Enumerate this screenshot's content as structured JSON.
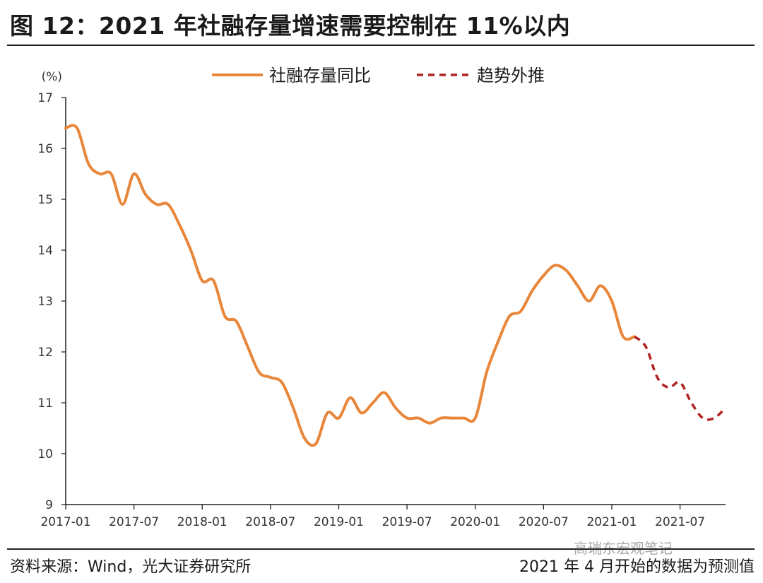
{
  "figure": {
    "title": "图 12：2021 年社融存量增速需要控制在 11%以内",
    "source": "资料来源：Wind，光大证券研究所",
    "note": "2021 年 4 月开始的数据为预测值",
    "watermark": "高瑞东宏观笔记"
  },
  "colors": {
    "actual": "#E8863A",
    "forecast": "#B22222",
    "axis": "#222222"
  },
  "chart_data": {
    "type": "line",
    "title": "",
    "xlabel": "",
    "ylabel": "(%)",
    "ylim": [
      9,
      17
    ],
    "yticks": [
      9,
      10,
      11,
      12,
      13,
      14,
      15,
      16,
      17
    ],
    "xticks": [
      "2017-01",
      "2017-07",
      "2018-01",
      "2018-07",
      "2019-01",
      "2019-07",
      "2020-01",
      "2020-07",
      "2021-01",
      "2021-07"
    ],
    "x_range": [
      "2017-01",
      "2021-11"
    ],
    "grid": false,
    "legend": "top-center",
    "series": [
      {
        "name": "社融存量同比",
        "style": "solid",
        "x": [
          "2017-01",
          "2017-02",
          "2017-03",
          "2017-04",
          "2017-05",
          "2017-06",
          "2017-07",
          "2017-08",
          "2017-09",
          "2017-10",
          "2017-11",
          "2017-12",
          "2018-01",
          "2018-02",
          "2018-03",
          "2018-04",
          "2018-05",
          "2018-06",
          "2018-07",
          "2018-08",
          "2018-09",
          "2018-10",
          "2018-11",
          "2018-12",
          "2019-01",
          "2019-02",
          "2019-03",
          "2019-04",
          "2019-05",
          "2019-06",
          "2019-07",
          "2019-08",
          "2019-09",
          "2019-10",
          "2019-11",
          "2019-12",
          "2020-01",
          "2020-02",
          "2020-03",
          "2020-04",
          "2020-05",
          "2020-06",
          "2020-07",
          "2020-08",
          "2020-09",
          "2020-10",
          "2020-11",
          "2020-12",
          "2021-01",
          "2021-02",
          "2021-03"
        ],
        "y": [
          16.4,
          16.4,
          15.7,
          15.5,
          15.5,
          14.9,
          15.5,
          15.1,
          14.9,
          14.9,
          14.5,
          14.0,
          13.4,
          13.4,
          12.7,
          12.6,
          12.1,
          11.6,
          11.5,
          11.4,
          10.9,
          10.3,
          10.2,
          10.8,
          10.7,
          11.1,
          10.8,
          11.0,
          11.2,
          10.9,
          10.7,
          10.7,
          10.6,
          10.7,
          10.7,
          10.7,
          10.7,
          11.6,
          12.2,
          12.7,
          12.8,
          13.2,
          13.5,
          13.7,
          13.6,
          13.3,
          13.0,
          13.3,
          13.0,
          12.3,
          12.3
        ]
      },
      {
        "name": "趋势外推",
        "style": "dashed",
        "x": [
          "2021-03",
          "2021-04",
          "2021-05",
          "2021-06",
          "2021-07",
          "2021-08",
          "2021-09",
          "2021-10",
          "2021-11"
        ],
        "y": [
          12.3,
          12.1,
          11.5,
          11.3,
          11.4,
          11.0,
          10.7,
          10.7,
          10.9
        ]
      }
    ]
  }
}
